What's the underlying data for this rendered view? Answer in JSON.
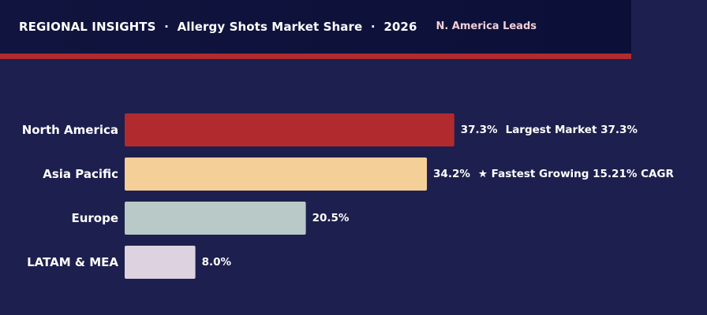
{
  "header": {
    "title": "REGIONAL INSIGHTS  ·  Allergy Shots Market Share  ·  2026",
    "badge": "N. America Leads"
  },
  "colors": {
    "background": "#1d1f4e",
    "header_bg": "#0e1139",
    "accent_stripe": "#b12a2e"
  },
  "chart_data": {
    "type": "bar",
    "orientation": "horizontal",
    "title": "REGIONAL INSIGHTS  ·  Allergy Shots Market Share  ·  2026",
    "categories": [
      "North America",
      "Asia Pacific",
      "Europe",
      "LATAM & MEA"
    ],
    "values": [
      37.3,
      34.2,
      20.5,
      8.0
    ],
    "value_labels": [
      "37.3%",
      "34.2%",
      "20.5%",
      "8.0%"
    ],
    "bar_colors": [
      "#b12a2e",
      "#f5cf98",
      "#b8c9c8",
      "#ddd2df"
    ],
    "annotations": [
      "Largest Market  37.3%",
      "★ Fastest Growing  15.21% CAGR",
      "",
      ""
    ],
    "unit": "%",
    "xlim": [
      0,
      50
    ],
    "grid": false,
    "legend": "none"
  }
}
